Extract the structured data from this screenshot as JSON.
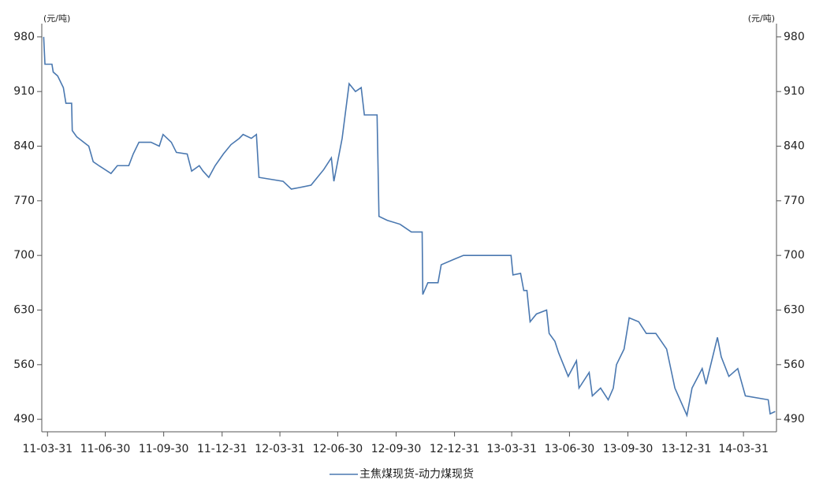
{
  "chart_data": {
    "type": "line",
    "y_unit": "(元/吨)",
    "y2_unit": "(元/吨)",
    "x": [
      "11-03-25",
      "11-03-27",
      "11-04-07",
      "11-04-09",
      "11-04-16",
      "11-04-25",
      "11-04-29",
      "11-05-08",
      "11-05-09",
      "11-05-16",
      "11-05-27",
      "11-06-04",
      "11-06-11",
      "11-06-20",
      "11-07-09",
      "11-07-19",
      "11-08-06",
      "11-08-13",
      "11-08-22",
      "11-09-10",
      "11-09-23",
      "11-09-29",
      "11-10-12",
      "11-10-20",
      "11-11-06",
      "11-11-13",
      "11-11-25",
      "11-12-01",
      "11-12-10",
      "11-12-20",
      "12-01-02",
      "12-01-14",
      "12-01-27",
      "12-02-02",
      "12-02-15",
      "12-02-23",
      "12-02-27",
      "12-04-05",
      "12-04-18",
      "12-05-01",
      "12-05-19",
      "12-06-08",
      "12-06-20",
      "12-06-24",
      "12-07-07",
      "12-07-18",
      "12-07-28",
      "12-08-06",
      "12-08-11",
      "12-08-31",
      "12-09-03",
      "12-09-16",
      "12-10-06",
      "12-10-24",
      "12-11-10",
      "12-11-11",
      "12-11-19",
      "12-12-05",
      "12-12-10",
      "12-12-30",
      "13-01-14",
      "13-03-30",
      "13-04-02",
      "13-04-14",
      "13-04-19",
      "13-04-24",
      "13-04-29",
      "13-05-09",
      "13-05-25",
      "13-05-29",
      "13-06-07",
      "13-06-13",
      "13-06-28",
      "13-07-11",
      "13-07-15",
      "13-07-31",
      "13-08-05",
      "13-08-18",
      "13-08-30",
      "13-09-07",
      "13-09-12",
      "13-09-24",
      "13-10-02",
      "13-10-17",
      "13-10-29",
      "13-11-13",
      "13-11-30",
      "13-12-13",
      "14-01-01",
      "14-01-09",
      "14-01-25",
      "14-01-31",
      "14-02-18",
      "14-02-24",
      "14-03-08",
      "14-03-22",
      "14-04-03",
      "14-05-09",
      "14-05-12",
      "14-05-20"
    ],
    "series": [
      {
        "name": "主焦煤现货-动力煤现货",
        "color": "#4a78b0",
        "values": [
          980,
          945,
          945,
          935,
          930,
          915,
          895,
          895,
          860,
          852,
          845,
          840,
          820,
          815,
          805,
          815,
          815,
          830,
          845,
          845,
          840,
          855,
          845,
          832,
          830,
          808,
          815,
          808,
          800,
          815,
          830,
          842,
          850,
          855,
          850,
          855,
          800,
          795,
          785,
          787,
          790,
          810,
          825,
          795,
          850,
          920,
          910,
          915,
          880,
          880,
          750,
          745,
          740,
          730,
          730,
          650,
          665,
          665,
          688,
          695,
          700,
          700,
          675,
          677,
          655,
          655,
          615,
          625,
          630,
          600,
          590,
          575,
          545,
          565,
          530,
          550,
          520,
          530,
          515,
          530,
          560,
          580,
          620,
          615,
          600,
          600,
          580,
          530,
          495,
          530,
          555,
          535,
          595,
          570,
          545,
          555,
          520,
          515,
          497,
          500
        ]
      }
    ],
    "xlim": [
      "11-03-22",
      "14-05-22"
    ],
    "xticks": [
      "11-03-31",
      "11-06-30",
      "11-09-30",
      "11-12-31",
      "12-03-31",
      "12-06-30",
      "12-09-30",
      "12-12-31",
      "13-03-31",
      "13-06-30",
      "13-09-30",
      "13-12-31",
      "14-03-31"
    ],
    "ylim": [
      474,
      997
    ],
    "yticks": [
      490,
      560,
      630,
      700,
      770,
      840,
      910,
      980
    ],
    "y2lim": [
      474,
      997
    ],
    "y2ticks": [
      490,
      560,
      630,
      700,
      770,
      840,
      910,
      980
    ],
    "legend": "bottom"
  }
}
